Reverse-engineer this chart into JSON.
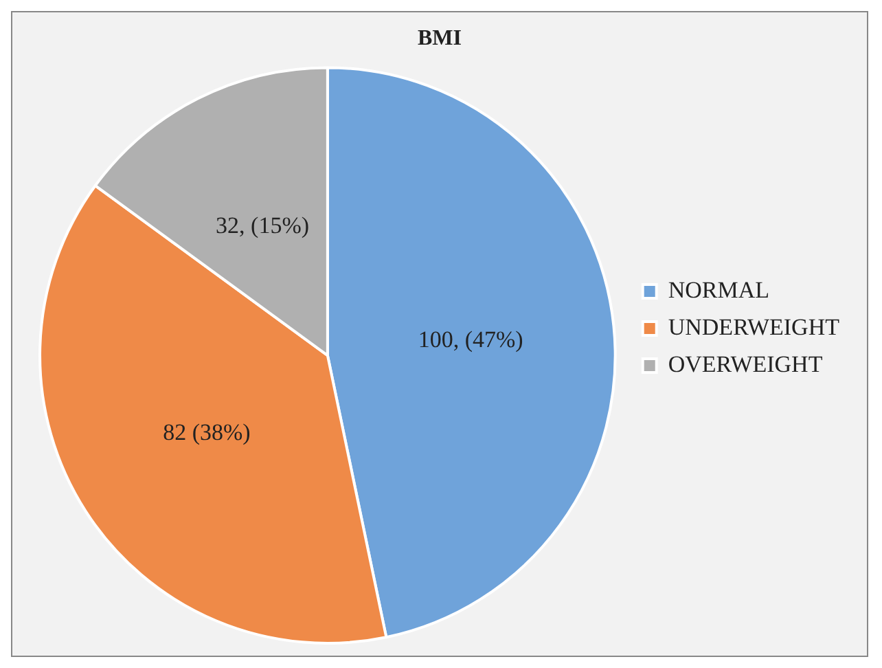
{
  "chart_data": {
    "type": "pie",
    "title": "BMI",
    "categories": [
      "NORMAL",
      "UNDERWEIGHT",
      "OVERWEIGHT"
    ],
    "values": [
      100,
      82,
      32
    ],
    "colors": [
      "#6fa3da",
      "#ef8a48",
      "#b0b0b0"
    ],
    "value_labels": [
      "100, (47%)",
      "82 (38%)",
      "32, (15%)"
    ],
    "legend": "right"
  }
}
